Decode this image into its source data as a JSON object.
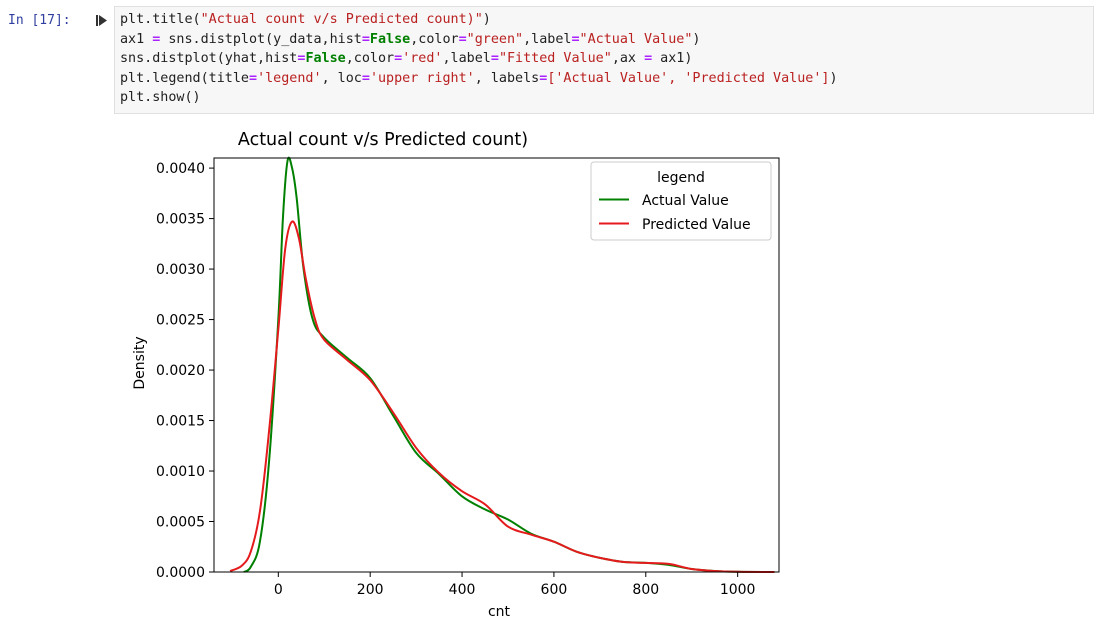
{
  "cell": {
    "prompt": "In [17]:",
    "code_lines": [
      [
        {
          "t": "plt.title("
        },
        {
          "t": "\"Actual count v/s Predicted count)\"",
          "c": "s"
        },
        {
          "t": ")"
        }
      ],
      [
        {
          "t": "ax1 "
        },
        {
          "t": "=",
          "c": "op"
        },
        {
          "t": " sns.distplot(y_data,hist"
        },
        {
          "t": "=",
          "c": "op"
        },
        {
          "t": "False",
          "c": "kw"
        },
        {
          "t": ",color"
        },
        {
          "t": "=",
          "c": "op"
        },
        {
          "t": "\"green\"",
          "c": "s"
        },
        {
          "t": ",label"
        },
        {
          "t": "=",
          "c": "op"
        },
        {
          "t": "\"Actual Value\"",
          "c": "s"
        },
        {
          "t": ")"
        }
      ],
      [
        {
          "t": "sns.distplot(yhat,hist"
        },
        {
          "t": "=",
          "c": "op"
        },
        {
          "t": "False",
          "c": "kw"
        },
        {
          "t": ",color"
        },
        {
          "t": "=",
          "c": "op"
        },
        {
          "t": "'red'",
          "c": "s"
        },
        {
          "t": ",label"
        },
        {
          "t": "=",
          "c": "op"
        },
        {
          "t": "\"Fitted Value\"",
          "c": "s"
        },
        {
          "t": ",ax "
        },
        {
          "t": "=",
          "c": "op"
        },
        {
          "t": " ax1)"
        }
      ],
      [
        {
          "t": "plt.legend(title"
        },
        {
          "t": "=",
          "c": "op"
        },
        {
          "t": "'legend'",
          "c": "s"
        },
        {
          "t": ", loc"
        },
        {
          "t": "=",
          "c": "op"
        },
        {
          "t": "'upper right'",
          "c": "s"
        },
        {
          "t": ", labels"
        },
        {
          "t": "=",
          "c": "op"
        },
        {
          "t": "['Actual Value', 'Predicted Value']",
          "c": "s"
        },
        {
          "t": ")"
        }
      ],
      [
        {
          "t": "plt.show()"
        }
      ]
    ]
  },
  "chart_data": {
    "type": "line",
    "title": "Actual count v/s Predicted count)",
    "xlabel": "cnt",
    "ylabel": "Density",
    "xlim": [
      -140,
      1090
    ],
    "ylim": [
      0,
      0.0041
    ],
    "xticks": [
      0,
      200,
      400,
      600,
      800,
      1000
    ],
    "yticks": [
      0.0,
      0.0005,
      0.001,
      0.0015,
      0.002,
      0.0025,
      0.003,
      0.0035,
      0.004
    ],
    "ytick_labels": [
      "0.0000",
      "0.0005",
      "0.0010",
      "0.0015",
      "0.0020",
      "0.0025",
      "0.0030",
      "0.0035",
      "0.0040"
    ],
    "xtick_labels": [
      "0",
      "200",
      "400",
      "600",
      "800",
      "1000"
    ],
    "grid": false,
    "legend": {
      "title": "legend",
      "placement": "upper-right"
    },
    "series": [
      {
        "name": "Actual Value",
        "color": "#008000",
        "points": [
          [
            -75,
            0
          ],
          [
            -60,
            5e-05
          ],
          [
            -40,
            0.0003
          ],
          [
            -20,
            0.0011
          ],
          [
            0,
            0.0025
          ],
          [
            10,
            0.0035
          ],
          [
            20,
            0.00407
          ],
          [
            30,
            0.004
          ],
          [
            40,
            0.0037
          ],
          [
            55,
            0.003
          ],
          [
            75,
            0.0025
          ],
          [
            100,
            0.00232
          ],
          [
            150,
            0.00212
          ],
          [
            200,
            0.00192
          ],
          [
            250,
            0.00155
          ],
          [
            300,
            0.00118
          ],
          [
            350,
            0.00097
          ],
          [
            400,
            0.00075
          ],
          [
            450,
            0.00062
          ],
          [
            500,
            0.00052
          ],
          [
            550,
            0.00038
          ],
          [
            600,
            0.0003
          ],
          [
            650,
            0.0002
          ],
          [
            700,
            0.00014
          ],
          [
            750,
            0.0001
          ],
          [
            800,
            9e-05
          ],
          [
            850,
            7e-05
          ],
          [
            900,
            3e-05
          ],
          [
            950,
            1e-05
          ],
          [
            1000,
            2e-06
          ],
          [
            1080,
            0
          ]
        ]
      },
      {
        "name": "Predicted Value",
        "color": "#e41a1c",
        "points": [
          [
            -105,
            1e-05
          ],
          [
            -80,
            6e-05
          ],
          [
            -60,
            0.0002
          ],
          [
            -40,
            0.0006
          ],
          [
            -20,
            0.0014
          ],
          [
            0,
            0.0024
          ],
          [
            15,
            0.0032
          ],
          [
            30,
            0.00347
          ],
          [
            45,
            0.0033
          ],
          [
            60,
            0.0029
          ],
          [
            80,
            0.0025
          ],
          [
            100,
            0.0023
          ],
          [
            150,
            0.0021
          ],
          [
            200,
            0.0019
          ],
          [
            250,
            0.00158
          ],
          [
            300,
            0.00123
          ],
          [
            350,
            0.00098
          ],
          [
            400,
            0.0008
          ],
          [
            450,
            0.00067
          ],
          [
            500,
            0.00045
          ],
          [
            550,
            0.00037
          ],
          [
            600,
            0.0003
          ],
          [
            650,
            0.0002
          ],
          [
            700,
            0.00014
          ],
          [
            750,
            0.0001
          ],
          [
            800,
            9e-05
          ],
          [
            850,
            8e-05
          ],
          [
            900,
            3e-05
          ],
          [
            950,
            1e-05
          ],
          [
            1000,
            2e-06
          ],
          [
            1080,
            0
          ]
        ]
      }
    ]
  }
}
